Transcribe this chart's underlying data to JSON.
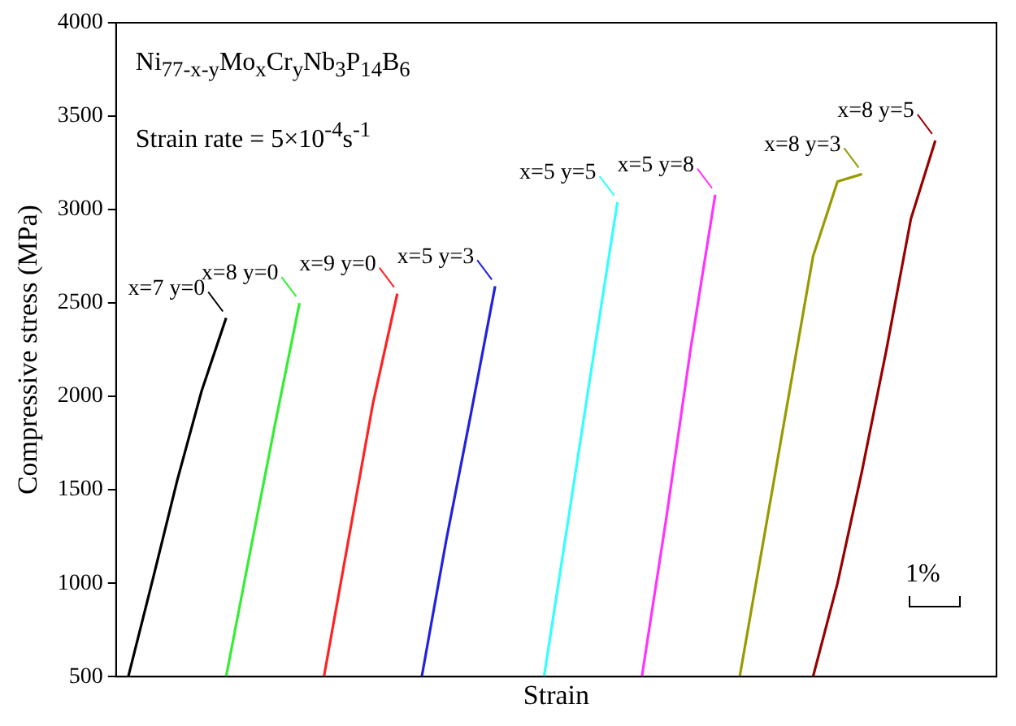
{
  "chart_data": {
    "type": "line",
    "xlabel": "Strain",
    "ylabel": "Compressive stress (MPa)",
    "categories": [
      null,
      null,
      null,
      null,
      null,
      null,
      null,
      null,
      null,
      null,
      null,
      null,
      null,
      null,
      null,
      null,
      null,
      null,
      null,
      null,
      null,
      null,
      null,
      null,
      null,
      null,
      null,
      null,
      null,
      null,
      null,
      null,
      null,
      null,
      null,
      null
    ],
    "ylim": [
      500,
      4000
    ],
    "yticks": [
      500,
      1000,
      1500,
      2000,
      2500,
      3000,
      3500,
      4000
    ],
    "tick_labels": "y",
    "grid": false,
    "legend": "top",
    "marker": "none",
    "line_style": "solid",
    "annotations": [
      "Ni$_{77-x-y}$Mo$_{x}$Cr$_{y}$Nb$_{3}$P$_{14}$B$_{6}$",
      "Strain rate = 5×10$^{-4}$s$^{-1}$",
      "1%"
    ],
    "series": [
      {
        "name": "x=7 y=0",
        "color": "#000000",
        "values": [
          500,
          1020,
          1550,
          2030,
          2420,
          null,
          null,
          null,
          null,
          null,
          null,
          null,
          null,
          null,
          null,
          null,
          null,
          null,
          null,
          null,
          null,
          null,
          null,
          null,
          null,
          null,
          null,
          null,
          null,
          null,
          null,
          null,
          null,
          null,
          null,
          null
        ]
      },
      {
        "name": "x=8 y=0",
        "color": "#33ee33",
        "values": [
          null,
          null,
          null,
          null,
          500,
          1180,
          1850,
          2500,
          null,
          null,
          null,
          null,
          null,
          null,
          null,
          null,
          null,
          null,
          null,
          null,
          null,
          null,
          null,
          null,
          null,
          null,
          null,
          null,
          null,
          null,
          null,
          null,
          null,
          null,
          null,
          null
        ]
      },
      {
        "name": "x=9 y=0",
        "color": "#ff2222",
        "values": [
          null,
          null,
          null,
          null,
          null,
          null,
          null,
          null,
          500,
          1230,
          1960,
          2550,
          null,
          null,
          null,
          null,
          null,
          null,
          null,
          null,
          null,
          null,
          null,
          null,
          null,
          null,
          null,
          null,
          null,
          null,
          null,
          null,
          null,
          null,
          null,
          null
        ]
      },
      {
        "name": "x=5 y=3",
        "color": "#2222dd",
        "values": [
          null,
          null,
          null,
          null,
          null,
          null,
          null,
          null,
          null,
          null,
          null,
          null,
          500,
          1230,
          1900,
          2590,
          null,
          null,
          null,
          null,
          null,
          null,
          null,
          null,
          null,
          null,
          null,
          null,
          null,
          null,
          null,
          null,
          null,
          null,
          null,
          null
        ]
      },
      {
        "name": "x=5 y=5",
        "color": "#33ffff",
        "values": [
          null,
          null,
          null,
          null,
          null,
          null,
          null,
          null,
          null,
          null,
          null,
          null,
          null,
          null,
          null,
          null,
          null,
          500,
          1350,
          2200,
          3040,
          null,
          null,
          null,
          null,
          null,
          null,
          null,
          null,
          null,
          null,
          null,
          null,
          null,
          null,
          null
        ]
      },
      {
        "name": "x=5 y=8",
        "color": "#ff33ff",
        "values": [
          null,
          null,
          null,
          null,
          null,
          null,
          null,
          null,
          null,
          null,
          null,
          null,
          null,
          null,
          null,
          null,
          null,
          null,
          null,
          null,
          null,
          500,
          1350,
          2260,
          3080,
          null,
          null,
          null,
          null,
          null,
          null,
          null,
          null,
          null,
          null,
          null
        ]
      },
      {
        "name": "x=8 y=3",
        "color": "#999900",
        "values": [
          null,
          null,
          null,
          null,
          null,
          null,
          null,
          null,
          null,
          null,
          null,
          null,
          null,
          null,
          null,
          null,
          null,
          null,
          null,
          null,
          null,
          null,
          null,
          null,
          null,
          500,
          1250,
          2000,
          2750,
          3150,
          3190,
          null,
          null,
          null,
          null,
          null
        ]
      },
      {
        "name": "x=8 y=5",
        "color": "#990000",
        "values": [
          null,
          null,
          null,
          null,
          null,
          null,
          null,
          null,
          null,
          null,
          null,
          null,
          null,
          null,
          null,
          null,
          null,
          null,
          null,
          null,
          null,
          null,
          null,
          null,
          null,
          null,
          null,
          null,
          500,
          1000,
          1600,
          2250,
          2950,
          3370,
          null,
          null
        ]
      }
    ]
  }
}
